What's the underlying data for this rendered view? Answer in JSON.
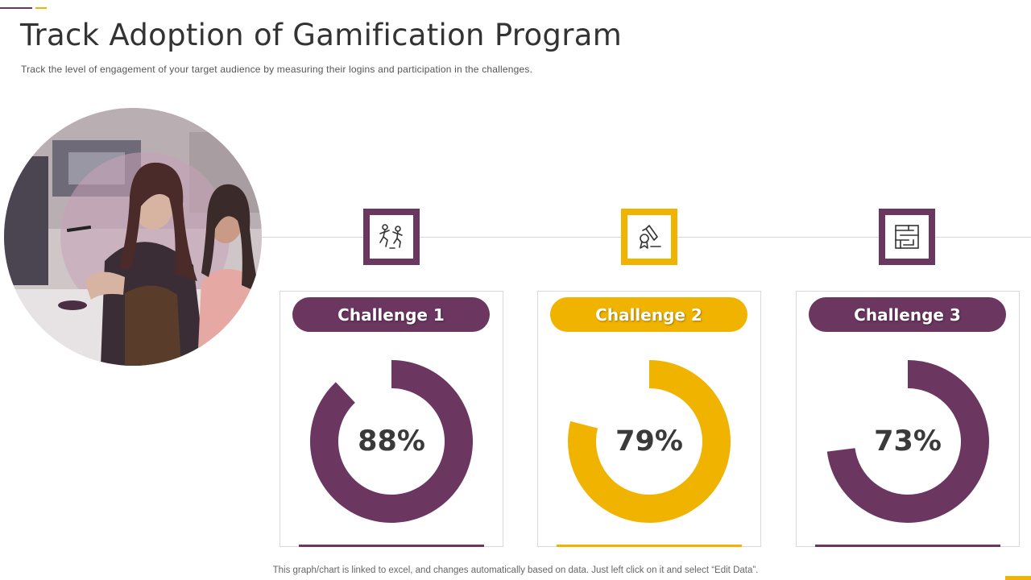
{
  "page": {
    "title": "Track Adoption of Gamification Program",
    "subtitle": "Track the level of engagement of your target audience by measuring their logins and participation in the challenges.",
    "footnote": "This graph/chart is linked to excel, and changes automatically based on data. Just left click on it and select “Edit Data”."
  },
  "colors": {
    "purple": "#6b3660",
    "gold": "#f0b400",
    "track": "#ffffff"
  },
  "icons": [
    "people-running-icon",
    "award-ribbon-icon",
    "maze-icon"
  ],
  "chart_data": {
    "type": "pie",
    "variant": "donut",
    "categories": [
      "Challenge 1",
      "Challenge 2",
      "Challenge 3"
    ],
    "values": [
      88,
      79,
      73
    ],
    "unit": "%",
    "labels": [
      "88%",
      "79%",
      "73%"
    ],
    "colors": [
      "#6b3660",
      "#f0b400",
      "#6b3660"
    ]
  }
}
